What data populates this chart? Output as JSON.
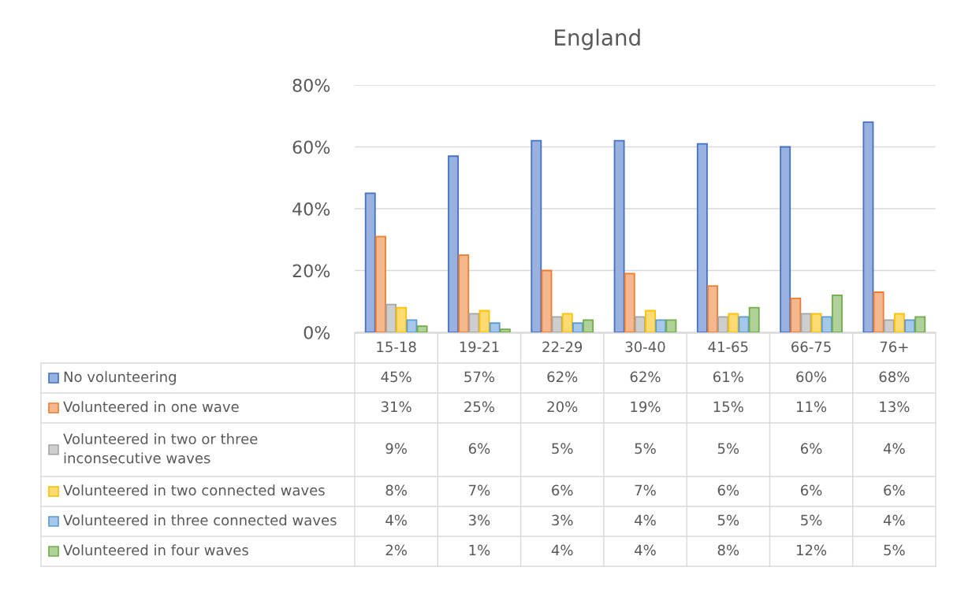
{
  "chart_data": {
    "type": "bar",
    "title": "England",
    "categories": [
      "15-18",
      "19-21",
      "22-29",
      "30-40",
      "41-65",
      "66-75",
      "76+"
    ],
    "series": [
      {
        "name": "No volunteering",
        "color": "#4472c4",
        "values": [
          45,
          57,
          62,
          62,
          61,
          60,
          68
        ],
        "value_labels": [
          "45%",
          "57%",
          "62%",
          "62%",
          "61%",
          "60%",
          "68%"
        ]
      },
      {
        "name": "Volunteered in one wave",
        "color": "#ed7d31",
        "values": [
          31,
          25,
          20,
          19,
          15,
          11,
          13
        ],
        "value_labels": [
          "31%",
          "25%",
          "20%",
          "19%",
          "15%",
          "11%",
          "13%"
        ]
      },
      {
        "name": "Volunteered in two or three inconsecutive waves",
        "color": "#a5a5a5",
        "values": [
          9,
          6,
          5,
          5,
          5,
          6,
          4
        ],
        "value_labels": [
          "9%",
          "6%",
          "5%",
          "5%",
          "5%",
          "6%",
          "4%"
        ]
      },
      {
        "name": "Volunteered in two connected waves",
        "color": "#ffc000",
        "values": [
          8,
          7,
          6,
          7,
          6,
          6,
          6
        ],
        "value_labels": [
          "8%",
          "7%",
          "6%",
          "7%",
          "6%",
          "6%",
          "6%"
        ]
      },
      {
        "name": "Volunteered in three connected waves",
        "color": "#5b9bd5",
        "values": [
          4,
          3,
          3,
          4,
          5,
          5,
          4
        ],
        "value_labels": [
          "4%",
          "3%",
          "3%",
          "4%",
          "5%",
          "5%",
          "4%"
        ]
      },
      {
        "name": "Volunteered in four waves",
        "color": "#70ad47",
        "values": [
          2,
          1,
          4,
          4,
          8,
          12,
          5
        ],
        "value_labels": [
          "2%",
          "1%",
          "4%",
          "4%",
          "8%",
          "12%",
          "5%"
        ]
      }
    ],
    "ylim": [
      0,
      80
    ],
    "yticks": [
      {
        "value": 0,
        "label": "0%"
      },
      {
        "value": 20,
        "label": "20%"
      },
      {
        "value": 40,
        "label": "40%"
      },
      {
        "value": 60,
        "label": "60%"
      },
      {
        "value": 80,
        "label": "80%"
      }
    ],
    "grid": "y",
    "legend": "bottom"
  }
}
